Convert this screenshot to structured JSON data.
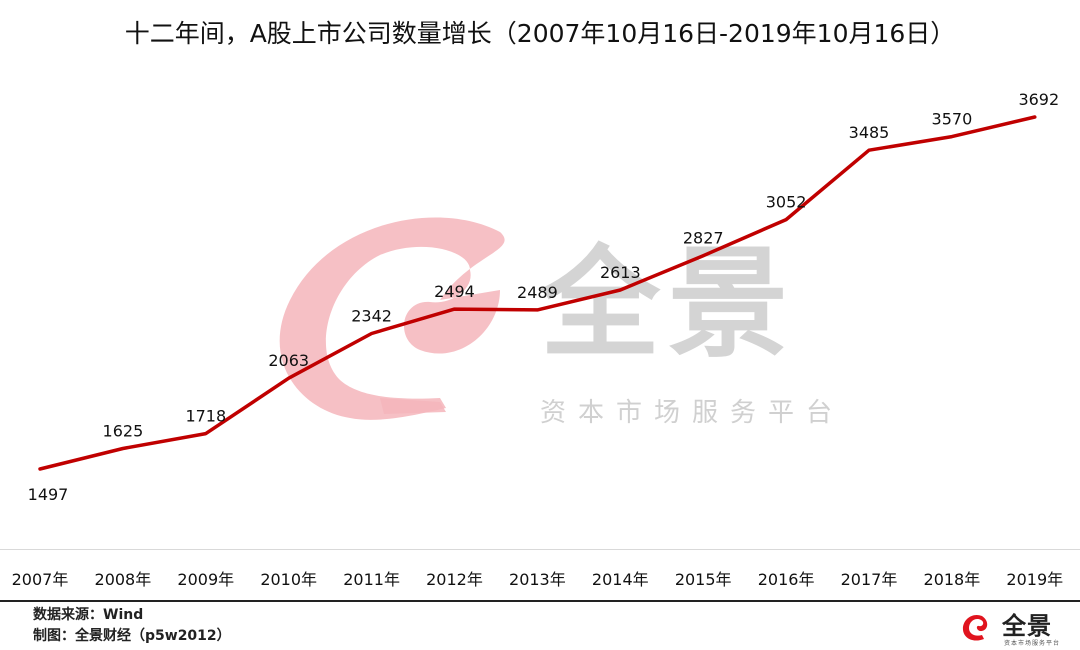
{
  "title": "十二年间，A股上市公司数量增长（2007年10月16日-2019年10月16日）",
  "watermark": {
    "main": "全景",
    "sub": "资本市场服务平台"
  },
  "footer": {
    "source": "数据来源：Wind",
    "credit": "制图：全景财经（p5w2012）"
  },
  "logo": {
    "text": "全景",
    "sub": "资本市场服务平台"
  },
  "colors": {
    "line": "#c00000",
    "watermark_swirl": "#f5b5bb",
    "watermark_text": "#d4d4d4"
  },
  "chart_data": {
    "type": "line",
    "title": "十二年间，A股上市公司数量增长（2007年10月16日-2019年10月16日）",
    "xlabel": "",
    "ylabel": "",
    "categories": [
      "2007年",
      "2008年",
      "2009年",
      "2010年",
      "2011年",
      "2012年",
      "2013年",
      "2014年",
      "2015年",
      "2016年",
      "2017年",
      "2018年",
      "2019年"
    ],
    "series": [
      {
        "name": "A股上市公司数量",
        "values": [
          1497,
          1625,
          1718,
          2063,
          2342,
          2494,
          2489,
          2613,
          2827,
          3052,
          3485,
          3570,
          3692
        ],
        "color": "#c00000"
      }
    ],
    "data_labels": true,
    "grid": false,
    "legend": "none",
    "ylim": [
      1497,
      3692
    ]
  }
}
